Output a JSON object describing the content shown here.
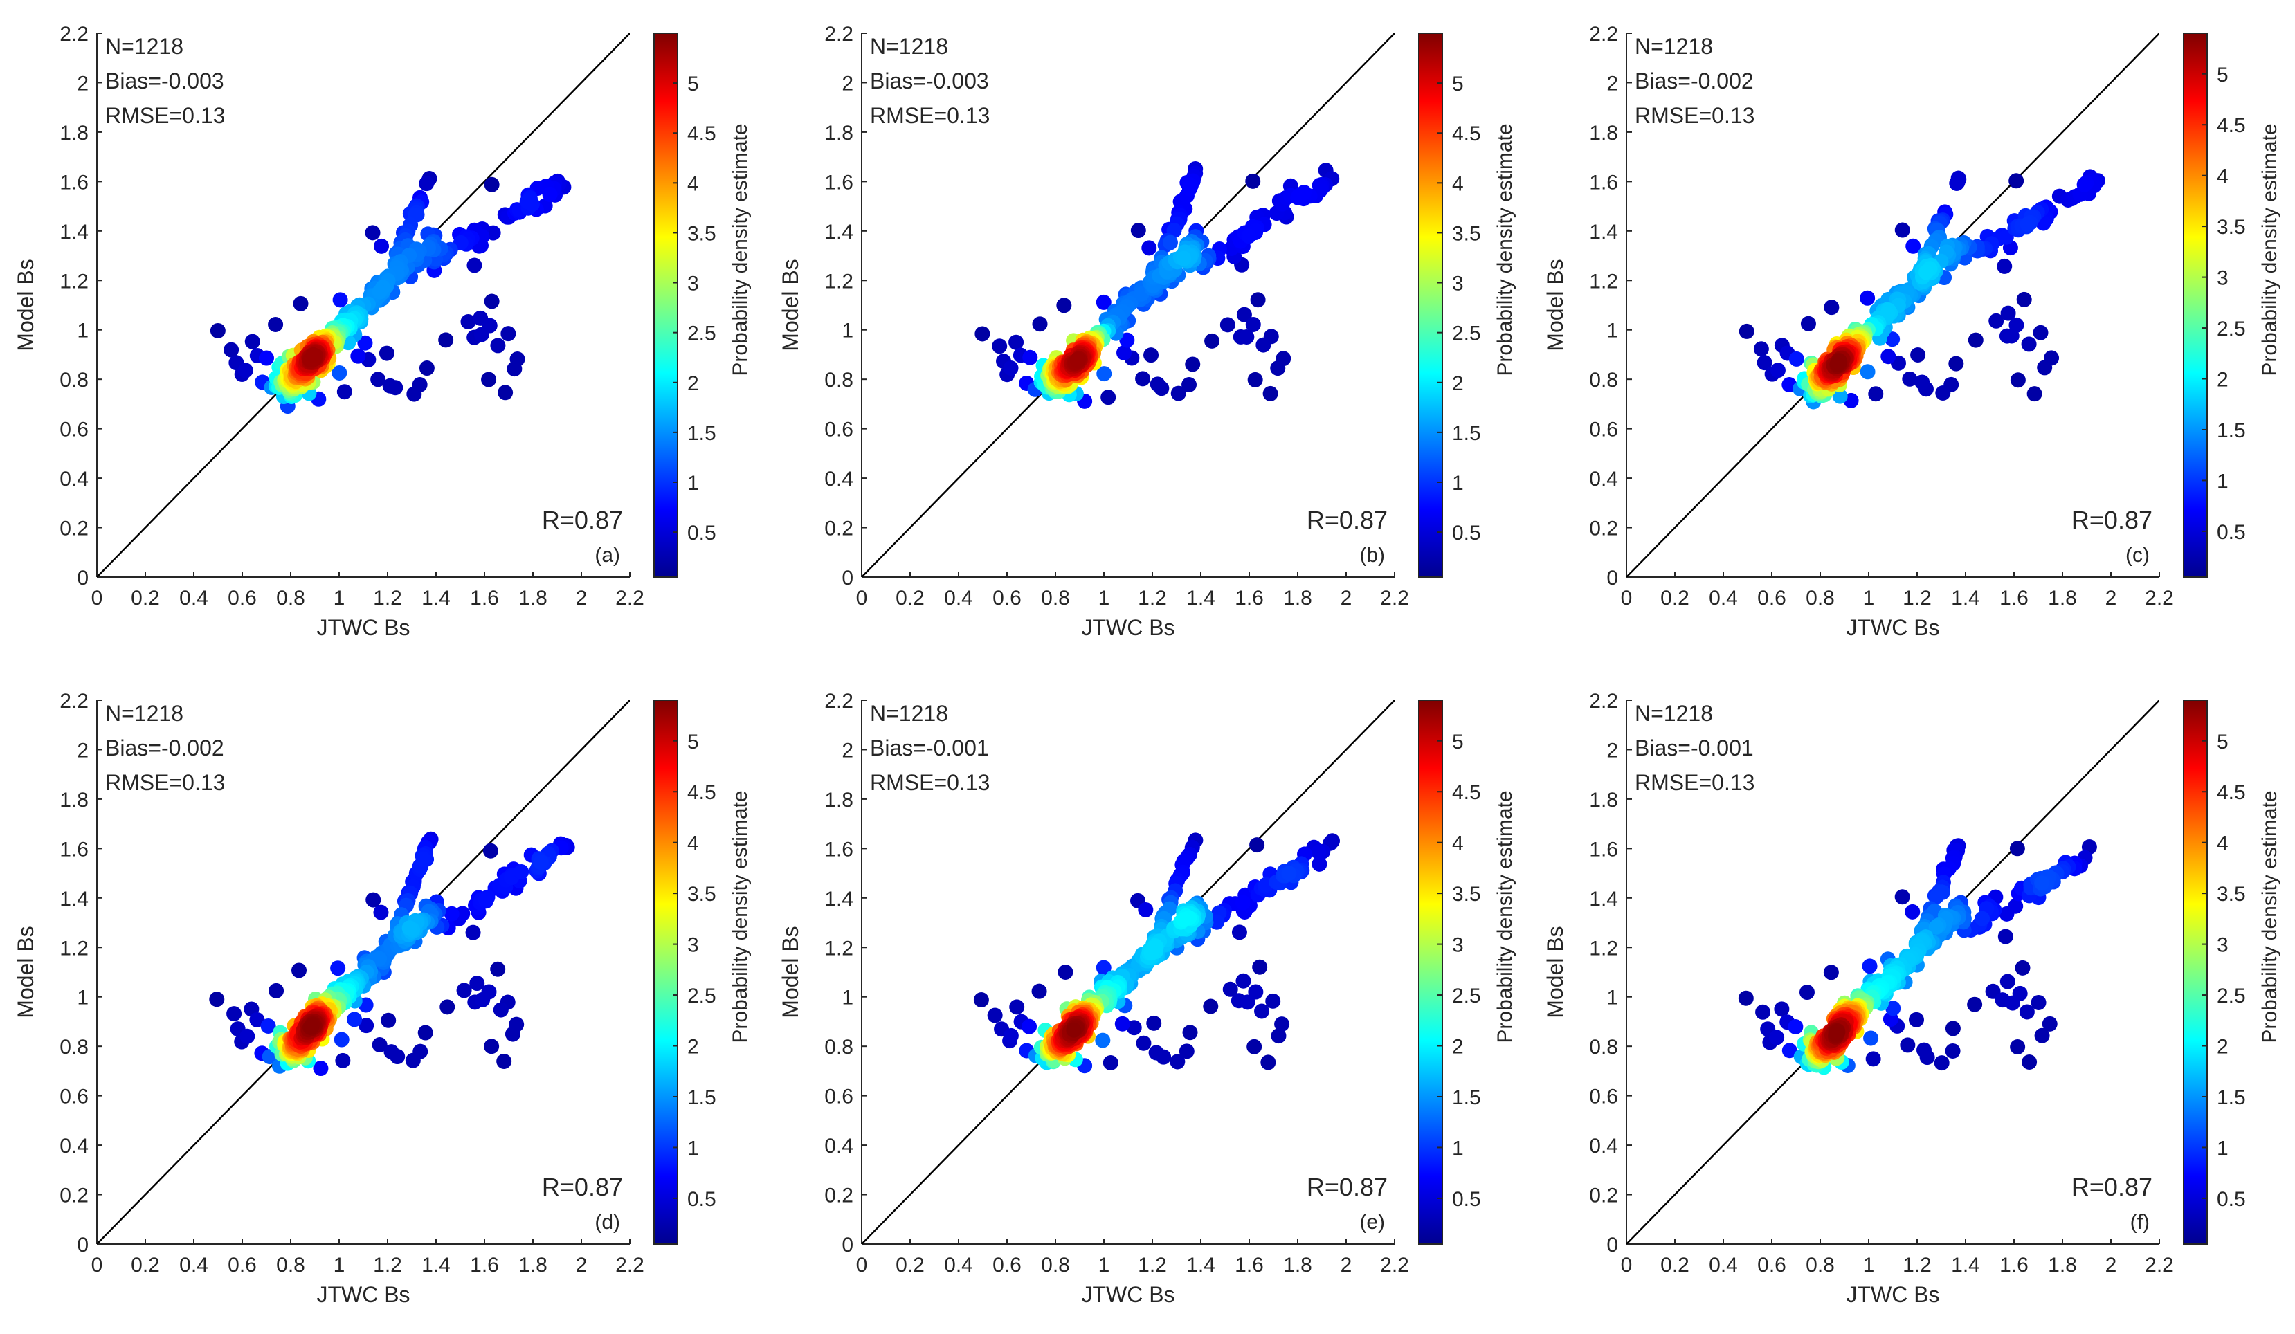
{
  "chart_data": [
    {
      "type": "scatter",
      "panel_label": "(a)",
      "xlabel": "JTWC Bs",
      "ylabel": "Model Bs",
      "xlim": [
        0,
        2.2
      ],
      "ylim": [
        0,
        2.2
      ],
      "x_ticks": [
        "0",
        "0.2",
        "0.4",
        "0.6",
        "0.8",
        "1",
        "1.2",
        "1.4",
        "1.6",
        "1.8",
        "2",
        "2.2"
      ],
      "y_ticks": [
        "0",
        "0.2",
        "0.4",
        "0.6",
        "0.8",
        "1",
        "1.2",
        "1.4",
        "1.6",
        "1.8",
        "2",
        "2.2"
      ],
      "stats": {
        "n": "N=1218",
        "bias": "Bias=-0.003",
        "rmse": "RMSE=0.13",
        "r": "R=0.87"
      },
      "colorbar": {
        "label": "Probability density estimate",
        "min": 0.05,
        "max": 5.5,
        "ticks": [
          "0.5",
          "1",
          "1.5",
          "2",
          "2.5",
          "3",
          "3.5",
          "4",
          "4.5",
          "5"
        ]
      },
      "reference_line": "1:1",
      "clusters": [
        {
          "name": "core",
          "x": [
            0.8,
            0.9
          ],
          "y": [
            0.8,
            0.9
          ],
          "density": 5.4
        },
        {
          "name": "main-diagonal",
          "x": [
            0.9,
            1.4
          ],
          "y": [
            0.9,
            1.35
          ],
          "density": [
            4.5,
            1.5
          ]
        },
        {
          "name": "upper-branch",
          "x": [
            1.2,
            1.38
          ],
          "y": [
            1.2,
            1.64
          ],
          "density": [
            1.5,
            0.4
          ]
        },
        {
          "name": "lower-branch",
          "x": [
            1.4,
            1.95
          ],
          "y": [
            1.28,
            1.6
          ],
          "density": [
            1.3,
            0.3
          ]
        },
        {
          "name": "left-tail",
          "x": [
            0.5,
            0.8
          ],
          "y": [
            0.8,
            1.0
          ],
          "density": [
            0.4,
            3.5
          ]
        },
        {
          "name": "scatter-below",
          "x": [
            1.0,
            1.75
          ],
          "y": [
            0.72,
            1.15
          ],
          "density": 0.2
        }
      ]
    },
    {
      "type": "scatter",
      "panel_label": "(b)",
      "xlabel": "JTWC Bs",
      "ylabel": "Model Bs",
      "xlim": [
        0,
        2.2
      ],
      "ylim": [
        0,
        2.2
      ],
      "x_ticks": [
        "0",
        "0.2",
        "0.4",
        "0.6",
        "0.8",
        "1",
        "1.2",
        "1.4",
        "1.6",
        "1.8",
        "2",
        "2.2"
      ],
      "y_ticks": [
        "0",
        "0.2",
        "0.4",
        "0.6",
        "0.8",
        "1",
        "1.2",
        "1.4",
        "1.6",
        "1.8",
        "2",
        "2.2"
      ],
      "stats": {
        "n": "N=1218",
        "bias": "Bias=-0.003",
        "rmse": "RMSE=0.13",
        "r": "R=0.87"
      },
      "colorbar": {
        "label": "Probability density estimate",
        "min": 0.05,
        "max": 5.5,
        "ticks": [
          "0.5",
          "1",
          "1.5",
          "2",
          "2.5",
          "3",
          "3.5",
          "4",
          "4.5",
          "5"
        ]
      },
      "reference_line": "1:1",
      "clusters": [
        {
          "name": "core",
          "x": [
            0.8,
            0.9
          ],
          "y": [
            0.8,
            0.9
          ],
          "density": 5.4
        },
        {
          "name": "main-diagonal",
          "x": [
            0.9,
            1.4
          ],
          "y": [
            0.9,
            1.35
          ],
          "density": [
            4.5,
            1.5
          ]
        },
        {
          "name": "upper-branch",
          "x": [
            1.2,
            1.38
          ],
          "y": [
            1.2,
            1.64
          ],
          "density": [
            1.5,
            0.4
          ]
        },
        {
          "name": "lower-branch",
          "x": [
            1.4,
            1.95
          ],
          "y": [
            1.28,
            1.6
          ],
          "density": [
            1.3,
            0.3
          ]
        },
        {
          "name": "left-tail",
          "x": [
            0.5,
            0.8
          ],
          "y": [
            0.8,
            1.0
          ],
          "density": [
            0.4,
            3.5
          ]
        },
        {
          "name": "scatter-below",
          "x": [
            1.0,
            1.75
          ],
          "y": [
            0.72,
            1.15
          ],
          "density": 0.2
        }
      ]
    },
    {
      "type": "scatter",
      "panel_label": "(c)",
      "xlabel": "JTWC Bs",
      "ylabel": "Model Bs",
      "xlim": [
        0,
        2.2
      ],
      "ylim": [
        0,
        2.2
      ],
      "x_ticks": [
        "0",
        "0.2",
        "0.4",
        "0.6",
        "0.8",
        "1",
        "1.2",
        "1.4",
        "1.6",
        "1.8",
        "2",
        "2.2"
      ],
      "y_ticks": [
        "0",
        "0.2",
        "0.4",
        "0.6",
        "0.8",
        "1",
        "1.2",
        "1.4",
        "1.6",
        "1.8",
        "2",
        "2.2"
      ],
      "stats": {
        "n": "N=1218",
        "bias": "Bias=-0.002",
        "rmse": "RMSE=0.13",
        "r": "R=0.87"
      },
      "colorbar": {
        "label": "Probability density estimate",
        "min": 0.05,
        "max": 5.4,
        "ticks": [
          "0.5",
          "1",
          "1.5",
          "2",
          "2.5",
          "3",
          "3.5",
          "4",
          "4.5",
          "5"
        ]
      },
      "reference_line": "1:1",
      "clusters": [
        {
          "name": "core",
          "x": [
            0.8,
            0.9
          ],
          "y": [
            0.8,
            0.9
          ],
          "density": 5.3
        },
        {
          "name": "main-diagonal",
          "x": [
            0.9,
            1.4
          ],
          "y": [
            0.9,
            1.35
          ],
          "density": [
            4.5,
            1.5
          ]
        },
        {
          "name": "upper-branch",
          "x": [
            1.2,
            1.38
          ],
          "y": [
            1.2,
            1.64
          ],
          "density": [
            1.5,
            0.4
          ]
        },
        {
          "name": "lower-branch",
          "x": [
            1.4,
            1.95
          ],
          "y": [
            1.28,
            1.6
          ],
          "density": [
            1.3,
            0.3
          ]
        },
        {
          "name": "left-tail",
          "x": [
            0.5,
            0.8
          ],
          "y": [
            0.8,
            1.0
          ],
          "density": [
            0.4,
            3.5
          ]
        },
        {
          "name": "scatter-below",
          "x": [
            1.0,
            1.75
          ],
          "y": [
            0.72,
            1.15
          ],
          "density": 0.2
        }
      ]
    },
    {
      "type": "scatter",
      "panel_label": "(d)",
      "xlabel": "JTWC Bs",
      "ylabel": "Model Bs",
      "xlim": [
        0,
        2.2
      ],
      "ylim": [
        0,
        2.2
      ],
      "x_ticks": [
        "0",
        "0.2",
        "0.4",
        "0.6",
        "0.8",
        "1",
        "1.2",
        "1.4",
        "1.6",
        "1.8",
        "2",
        "2.2"
      ],
      "y_ticks": [
        "0",
        "0.2",
        "0.4",
        "0.6",
        "0.8",
        "1",
        "1.2",
        "1.4",
        "1.6",
        "1.8",
        "2",
        "2.2"
      ],
      "stats": {
        "n": "N=1218",
        "bias": "Bias=-0.002",
        "rmse": "RMSE=0.13",
        "r": "R=0.87"
      },
      "colorbar": {
        "label": "Probability density estimate",
        "min": 0.05,
        "max": 5.4,
        "ticks": [
          "0.5",
          "1",
          "1.5",
          "2",
          "2.5",
          "3",
          "3.5",
          "4",
          "4.5",
          "5"
        ]
      },
      "reference_line": "1:1",
      "clusters": [
        {
          "name": "core",
          "x": [
            0.8,
            0.9
          ],
          "y": [
            0.8,
            0.9
          ],
          "density": 5.3
        },
        {
          "name": "main-diagonal",
          "x": [
            0.9,
            1.4
          ],
          "y": [
            0.9,
            1.35
          ],
          "density": [
            4.5,
            1.5
          ]
        },
        {
          "name": "upper-branch",
          "x": [
            1.2,
            1.38
          ],
          "y": [
            1.2,
            1.64
          ],
          "density": [
            1.5,
            0.4
          ]
        },
        {
          "name": "lower-branch",
          "x": [
            1.4,
            1.95
          ],
          "y": [
            1.28,
            1.6
          ],
          "density": [
            1.3,
            0.3
          ]
        },
        {
          "name": "left-tail",
          "x": [
            0.5,
            0.8
          ],
          "y": [
            0.8,
            1.0
          ],
          "density": [
            0.4,
            3.5
          ]
        },
        {
          "name": "scatter-below",
          "x": [
            1.0,
            1.75
          ],
          "y": [
            0.72,
            1.15
          ],
          "density": 0.2
        }
      ]
    },
    {
      "type": "scatter",
      "panel_label": "(e)",
      "xlabel": "JTWC Bs",
      "ylabel": "Model Bs",
      "xlim": [
        0,
        2.2
      ],
      "ylim": [
        0,
        2.2
      ],
      "x_ticks": [
        "0",
        "0.2",
        "0.4",
        "0.6",
        "0.8",
        "1",
        "1.2",
        "1.4",
        "1.6",
        "1.8",
        "2",
        "2.2"
      ],
      "y_ticks": [
        "0",
        "0.2",
        "0.4",
        "0.6",
        "0.8",
        "1",
        "1.2",
        "1.4",
        "1.6",
        "1.8",
        "2",
        "2.2"
      ],
      "stats": {
        "n": "N=1218",
        "bias": "Bias=-0.001",
        "rmse": "RMSE=0.13",
        "r": "R=0.87"
      },
      "colorbar": {
        "label": "Probability density estimate",
        "min": 0.05,
        "max": 5.4,
        "ticks": [
          "0.5",
          "1",
          "1.5",
          "2",
          "2.5",
          "3",
          "3.5",
          "4",
          "4.5",
          "5"
        ]
      },
      "reference_line": "1:1",
      "clusters": [
        {
          "name": "core",
          "x": [
            0.8,
            0.9
          ],
          "y": [
            0.8,
            0.9
          ],
          "density": 5.3
        },
        {
          "name": "main-diagonal",
          "x": [
            0.9,
            1.4
          ],
          "y": [
            0.9,
            1.35
          ],
          "density": [
            4.5,
            1.5
          ]
        },
        {
          "name": "upper-branch",
          "x": [
            1.2,
            1.38
          ],
          "y": [
            1.2,
            1.64
          ],
          "density": [
            1.5,
            0.4
          ]
        },
        {
          "name": "lower-branch",
          "x": [
            1.4,
            1.95
          ],
          "y": [
            1.28,
            1.6
          ],
          "density": [
            1.3,
            0.3
          ]
        },
        {
          "name": "left-tail",
          "x": [
            0.5,
            0.8
          ],
          "y": [
            0.8,
            1.0
          ],
          "density": [
            0.4,
            3.5
          ]
        },
        {
          "name": "scatter-below",
          "x": [
            1.0,
            1.75
          ],
          "y": [
            0.72,
            1.15
          ],
          "density": 0.2
        }
      ]
    },
    {
      "type": "scatter",
      "panel_label": "(f)",
      "xlabel": "JTWC Bs",
      "ylabel": "Model Bs",
      "xlim": [
        0,
        2.2
      ],
      "ylim": [
        0,
        2.2
      ],
      "x_ticks": [
        "0",
        "0.2",
        "0.4",
        "0.6",
        "0.8",
        "1",
        "1.2",
        "1.4",
        "1.6",
        "1.8",
        "2",
        "2.2"
      ],
      "y_ticks": [
        "0",
        "0.2",
        "0.4",
        "0.6",
        "0.8",
        "1",
        "1.2",
        "1.4",
        "1.6",
        "1.8",
        "2",
        "2.2"
      ],
      "stats": {
        "n": "N=1218",
        "bias": "Bias=-0.001",
        "rmse": "RMSE=0.13",
        "r": "R=0.87"
      },
      "colorbar": {
        "label": "Probability density estimate",
        "min": 0.05,
        "max": 5.4,
        "ticks": [
          "0.5",
          "1",
          "1.5",
          "2",
          "2.5",
          "3",
          "3.5",
          "4",
          "4.5",
          "5"
        ]
      },
      "reference_line": "1:1",
      "clusters": [
        {
          "name": "core",
          "x": [
            0.8,
            0.9
          ],
          "y": [
            0.8,
            0.9
          ],
          "density": 5.3
        },
        {
          "name": "main-diagonal",
          "x": [
            0.9,
            1.4
          ],
          "y": [
            0.9,
            1.35
          ],
          "density": [
            4.5,
            1.5
          ]
        },
        {
          "name": "upper-branch",
          "x": [
            1.2,
            1.38
          ],
          "y": [
            1.2,
            1.64
          ],
          "density": [
            1.5,
            0.4
          ]
        },
        {
          "name": "lower-branch",
          "x": [
            1.4,
            1.95
          ],
          "y": [
            1.28,
            1.6
          ],
          "density": [
            1.3,
            0.3
          ]
        },
        {
          "name": "left-tail",
          "x": [
            0.5,
            0.8
          ],
          "y": [
            0.8,
            1.0
          ],
          "density": [
            0.4,
            3.5
          ]
        },
        {
          "name": "scatter-below",
          "x": [
            1.0,
            1.75
          ],
          "y": [
            0.72,
            1.15
          ],
          "density": 0.2
        }
      ]
    }
  ]
}
